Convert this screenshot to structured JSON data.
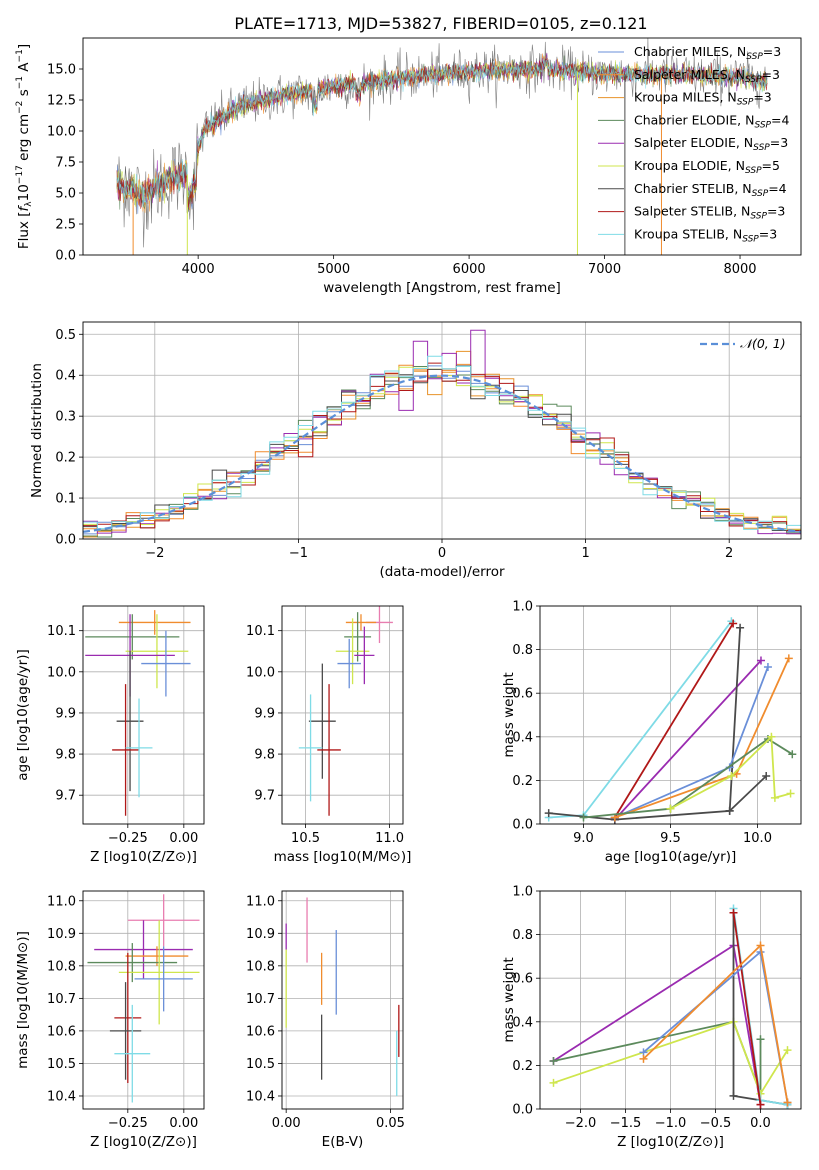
{
  "figure_title": "PLATE=1713, MJD=53827, FIBERID=0105, z=0.121",
  "colors": {
    "chabrier_miles": "#6a8fd8",
    "salpeter_miles": "#f08c2e",
    "kroupa_miles": "#e8922a",
    "chabrier_elodie": "#5c8a5c",
    "salpeter_elodie": "#9a2bb0",
    "kroupa_elodie": "#cfe64d",
    "chabrier_stelib": "#4a4a4a",
    "salpeter_stelib": "#b01818",
    "kroupa_stelib": "#7fdbe6",
    "pink": "#e87db0",
    "gaussian": "#5a8fd8",
    "data": "#808080",
    "grid": "#b0b0b0"
  },
  "chart_data": [
    {
      "id": "spectrum",
      "type": "line",
      "title": "PLATE=1713, MJD=53827, FIBERID=0105, z=0.121",
      "xlabel": "wavelength [Angstrom, rest frame]",
      "ylabel": "Flux [f_λ 10^-17 erg cm^-2 s^-1 A^-1]",
      "xlim": [
        3150,
        8450
      ],
      "ylim": [
        0,
        17.5
      ],
      "xticks": [
        4000,
        5000,
        6000,
        7000,
        8000
      ],
      "yticks": [
        "0.0",
        "2.5",
        "5.0",
        "7.5",
        "10.0",
        "12.5",
        "15.0"
      ],
      "grid": false,
      "legend": "upper right",
      "data_range": [
        3400,
        8200
      ],
      "continuum_points": [
        [
          3400,
          5.8
        ],
        [
          3600,
          4.8
        ],
        [
          3800,
          6.2
        ],
        [
          3950,
          6.8
        ],
        [
          4050,
          10.2
        ],
        [
          4300,
          12.0
        ],
        [
          4600,
          12.8
        ],
        [
          5000,
          13.6
        ],
        [
          5500,
          14.3
        ],
        [
          6000,
          14.8
        ],
        [
          6500,
          15.0
        ],
        [
          7000,
          14.6
        ],
        [
          7500,
          14.6
        ],
        [
          8000,
          14.3
        ],
        [
          8200,
          14.0
        ]
      ],
      "series": [
        {
          "name": "Chabrier MILES, N_SSP=3",
          "label_main": "Chabrier MILES, N",
          "label_sub": "SSP",
          "label_tail": "=3",
          "key": "chabrier_miles"
        },
        {
          "name": "Salpeter MILES, N_SSP=3",
          "label_main": "Salpeter MILES, N",
          "label_sub": "SSP",
          "label_tail": "=3",
          "key": "salpeter_miles"
        },
        {
          "name": "Kroupa MILES, N_SSP=3",
          "label_main": "Kroupa MILES, N",
          "label_sub": "SSP",
          "label_tail": "=3",
          "key": "kroupa_miles"
        },
        {
          "name": "Chabrier ELODIE, N_SSP=4",
          "label_main": "Chabrier ELODIE, N",
          "label_sub": "SSP",
          "label_tail": "=4",
          "key": "chabrier_elodie"
        },
        {
          "name": "Salpeter ELODIE, N_SSP=3",
          "label_main": "Salpeter ELODIE, N",
          "label_sub": "SSP",
          "label_tail": "=3",
          "key": "salpeter_elodie"
        },
        {
          "name": "Kroupa ELODIE, N_SSP=5",
          "label_main": "Kroupa ELODIE, N",
          "label_sub": "SSP",
          "label_tail": "=5",
          "key": "kroupa_elodie"
        },
        {
          "name": "Chabrier STELIB, N_SSP=4",
          "label_main": "Chabrier STELIB, N",
          "label_sub": "SSP",
          "label_tail": "=4",
          "key": "chabrier_stelib"
        },
        {
          "name": "Salpeter STELIB, N_SSP=3",
          "label_main": "Salpeter STELIB, N",
          "label_sub": "SSP",
          "label_tail": "=3",
          "key": "salpeter_stelib"
        },
        {
          "name": "Kroupa STELIB, N_SSP=3",
          "label_main": "Kroupa STELIB, N",
          "label_sub": "SSP",
          "label_tail": "=3",
          "key": "kroupa_stelib"
        }
      ],
      "edge_drops": [
        {
          "key": "salpeter_miles",
          "x": 3520,
          "y_from": 0,
          "y_to": 5.0
        },
        {
          "key": "kroupa_elodie",
          "x": 3920,
          "y_from": 0,
          "y_to": 6.5
        },
        {
          "key": "kroupa_elodie",
          "x": 6800,
          "y_from": 0,
          "y_to": 14.8
        },
        {
          "key": "salpeter_miles",
          "x": 7420,
          "y_from": 0,
          "y_to": 14.5
        },
        {
          "key": "chabrier_stelib",
          "x": 7150,
          "y_from": 0,
          "y_to": 14.6
        }
      ]
    },
    {
      "id": "residuals",
      "type": "histogram",
      "xlabel": "(data-model)/error",
      "ylabel": "Normed distribution",
      "xlim": [
        -2.5,
        2.5
      ],
      "ylim": [
        0,
        0.53
      ],
      "xticks": [
        "−2",
        "−1",
        "0",
        "1",
        "2"
      ],
      "yticks": [
        "0.0",
        "0.1",
        "0.2",
        "0.3",
        "0.4",
        "0.5"
      ],
      "grid": true,
      "legend": "upper right",
      "legend_label": "𝒩(0, 1)",
      "bin_width": 0.1,
      "x_start": -2.5,
      "peak_bins": {
        "chabrier_elodie_x": 0.25,
        "salpeter_elodie_peak": 0.51
      },
      "series_keys": [
        "chabrier_miles",
        "salpeter_miles",
        "kroupa_miles",
        "chabrier_elodie",
        "salpeter_elodie",
        "kroupa_elodie",
        "chabrier_stelib",
        "salpeter_stelib",
        "kroupa_stelib"
      ]
    },
    {
      "id": "age_vs_Z",
      "type": "errorbar",
      "xlabel": "Z [log10(Z/Z⊙)]",
      "ylabel": "age [log10(age/yr)]",
      "xlim": [
        -0.45,
        0.09
      ],
      "ylim": [
        9.63,
        10.16
      ],
      "xticks": [
        -0.25,
        0.0
      ],
      "xtick_labels": [
        "−0.25",
        "0.00"
      ],
      "yticks": [
        9.7,
        9.8,
        9.9,
        10.0,
        10.1
      ],
      "ytick_labels": [
        "9.7",
        "9.8",
        "9.9",
        "10.0",
        "10.1"
      ],
      "grid": true,
      "points": [
        {
          "key": "salpeter_miles",
          "x": -0.13,
          "y": 10.12,
          "xerr": 0.16,
          "yerr": 0.03
        },
        {
          "key": "chabrier_elodie",
          "x": -0.23,
          "y": 10.085,
          "xerr": 0.21,
          "yerr": 0.055
        },
        {
          "key": "kroupa_elodie",
          "x": -0.12,
          "y": 10.05,
          "xerr": 0.14,
          "yerr": 0.09
        },
        {
          "key": "salpeter_elodie",
          "x": -0.24,
          "y": 10.04,
          "xerr": 0.2,
          "yerr": 0.1
        },
        {
          "key": "chabrier_miles",
          "x": -0.08,
          "y": 10.02,
          "xerr": 0.11,
          "yerr": 0.08
        },
        {
          "key": "chabrier_stelib",
          "x": -0.24,
          "y": 9.88,
          "xerr": 0.06,
          "yerr": 0.17
        },
        {
          "key": "salpeter_stelib",
          "x": -0.26,
          "y": 9.81,
          "xerr": 0.06,
          "yerr": 0.16
        },
        {
          "key": "kroupa_stelib",
          "x": -0.2,
          "y": 9.815,
          "xerr": 0.06,
          "yerr": 0.12
        }
      ]
    },
    {
      "id": "age_vs_mass",
      "type": "errorbar",
      "xlabel": "mass [log10(M/M⊙)]",
      "ylabel": "",
      "xlim": [
        10.36,
        11.08
      ],
      "ylim": [
        9.63,
        10.16
      ],
      "xticks": [
        10.5,
        11.0
      ],
      "xtick_labels": [
        "10.5",
        "11.0"
      ],
      "yticks": [
        9.7,
        9.8,
        9.9,
        10.0,
        10.1
      ],
      "ytick_labels": [
        "9.7",
        "9.8",
        "9.9",
        "10.0",
        "10.1"
      ],
      "grid": true,
      "points": [
        {
          "key": "pink",
          "x": 10.94,
          "y": 10.12,
          "xerr": 0.08,
          "yerr": 0.05
        },
        {
          "key": "salpeter_miles",
          "x": 10.83,
          "y": 10.12,
          "xerr": 0.09,
          "yerr": 0.02
        },
        {
          "key": "chabrier_elodie",
          "x": 10.81,
          "y": 10.085,
          "xerr": 0.08,
          "yerr": 0.06
        },
        {
          "key": "kroupa_elodie",
          "x": 10.78,
          "y": 10.05,
          "xerr": 0.1,
          "yerr": 0.08
        },
        {
          "key": "salpeter_elodie",
          "x": 10.85,
          "y": 10.04,
          "xerr": 0.06,
          "yerr": 0.07
        },
        {
          "key": "chabrier_miles",
          "x": 10.76,
          "y": 10.02,
          "xerr": 0.07,
          "yerr": 0.06
        },
        {
          "key": "chabrier_stelib",
          "x": 10.6,
          "y": 9.88,
          "xerr": 0.08,
          "yerr": 0.14
        },
        {
          "key": "salpeter_stelib",
          "x": 10.64,
          "y": 9.81,
          "xerr": 0.07,
          "yerr": 0.16
        },
        {
          "key": "kroupa_stelib",
          "x": 10.53,
          "y": 9.815,
          "xerr": 0.07,
          "yerr": 0.13
        }
      ]
    },
    {
      "id": "weight_vs_age",
      "type": "line",
      "xlabel": "age [log10(age/yr)]",
      "ylabel": "mass weight",
      "xlim": [
        8.75,
        10.25
      ],
      "ylim": [
        0,
        1.0
      ],
      "xticks": [
        9.0,
        9.5,
        10.0
      ],
      "xtick_labels": [
        "9.0",
        "9.5",
        "10.0"
      ],
      "yticks": [
        0.0,
        0.2,
        0.4,
        0.6,
        0.8,
        1.0
      ],
      "ytick_labels": [
        "0.0",
        "0.2",
        "0.4",
        "0.6",
        "0.8",
        "1.0"
      ],
      "grid": true,
      "series": [
        {
          "key": "kroupa_stelib",
          "x": [
            8.8,
            9.0,
            9.85
          ],
          "y": [
            0.03,
            0.04,
            0.93
          ]
        },
        {
          "key": "salpeter_stelib",
          "x": [
            9.18,
            9.86
          ],
          "y": [
            0.03,
            0.92
          ]
        },
        {
          "key": "salpeter_elodie",
          "x": [
            9.18,
            10.02
          ],
          "y": [
            0.02,
            0.75
          ]
        },
        {
          "key": "chabrier_stelib",
          "x": [
            8.8,
            9.18,
            9.84,
            9.9
          ],
          "y": [
            0.05,
            0.02,
            0.06,
            0.9
          ]
        },
        {
          "key": "chabrier_miles",
          "x": [
            9.18,
            9.84,
            10.06
          ],
          "y": [
            0.03,
            0.26,
            0.72
          ]
        },
        {
          "key": "salpeter_miles",
          "x": [
            9.18,
            9.88,
            10.18
          ],
          "y": [
            0.03,
            0.23,
            0.76
          ]
        },
        {
          "key": "chabrier_elodie",
          "x": [
            9.0,
            9.5,
            10.06,
            10.2
          ],
          "y": [
            0.03,
            0.07,
            0.39,
            0.32
          ]
        },
        {
          "key": "kroupa_elodie",
          "x": [
            9.5,
            9.85,
            10.08,
            10.1,
            10.19
          ],
          "y": [
            0.07,
            0.22,
            0.4,
            0.12,
            0.14
          ]
        },
        {
          "key": "chabrier_stelib",
          "x": [
            9.84,
            10.05
          ],
          "y": [
            0.06,
            0.22
          ]
        }
      ]
    },
    {
      "id": "mass_vs_Z",
      "type": "errorbar",
      "xlabel": "Z [log10(Z/Z⊙)]",
      "ylabel": "mass [log10(M/M⊙)]",
      "xlim": [
        -0.45,
        0.09
      ],
      "ylim": [
        10.36,
        11.03
      ],
      "xticks": [
        -0.25,
        0.0
      ],
      "xtick_labels": [
        "−0.25",
        "0.00"
      ],
      "yticks": [
        10.4,
        10.5,
        10.6,
        10.7,
        10.8,
        10.9,
        11.0
      ],
      "ytick_labels": [
        "10.4",
        "10.5",
        "10.6",
        "10.7",
        "10.8",
        "10.9",
        "11.0"
      ],
      "grid": true,
      "points": [
        {
          "key": "pink",
          "x": -0.09,
          "y": 10.94,
          "xerr": 0.16,
          "yerr": 0.08
        },
        {
          "key": "salpeter_elodie",
          "x": -0.18,
          "y": 10.85,
          "xerr": 0.22,
          "yerr": 0.09
        },
        {
          "key": "salpeter_miles",
          "x": -0.12,
          "y": 10.83,
          "xerr": 0.14,
          "yerr": 0.03
        },
        {
          "key": "chabrier_elodie",
          "x": -0.23,
          "y": 10.81,
          "xerr": 0.2,
          "yerr": 0.06
        },
        {
          "key": "kroupa_elodie",
          "x": -0.11,
          "y": 10.78,
          "xerr": 0.18,
          "yerr": 0.16
        },
        {
          "key": "chabrier_miles",
          "x": -0.09,
          "y": 10.76,
          "xerr": 0.13,
          "yerr": 0.1
        },
        {
          "key": "salpeter_stelib",
          "x": -0.25,
          "y": 10.64,
          "xerr": 0.06,
          "yerr": 0.2
        },
        {
          "key": "chabrier_stelib",
          "x": -0.26,
          "y": 10.6,
          "xerr": 0.07,
          "yerr": 0.15
        },
        {
          "key": "kroupa_stelib",
          "x": -0.23,
          "y": 10.53,
          "xerr": 0.08,
          "yerr": 0.15
        }
      ]
    },
    {
      "id": "mass_vs_ebv",
      "type": "errorbar",
      "xlabel": "E(B-V)",
      "ylabel": "",
      "xlim": [
        -0.002,
        0.056
      ],
      "ylim": [
        10.36,
        11.03
      ],
      "xticks": [
        0.0,
        0.05
      ],
      "xtick_labels": [
        "0.00",
        "0.05"
      ],
      "yticks": [
        10.4,
        10.5,
        10.6,
        10.7,
        10.8,
        10.9,
        11.0
      ],
      "ytick_labels": [
        "10.4",
        "10.5",
        "10.6",
        "10.7",
        "10.8",
        "10.9",
        "11.0"
      ],
      "grid": true,
      "points": [
        {
          "key": "pink",
          "x": 0.01,
          "y": 10.91,
          "xerr": 0,
          "yerr": 0.1
        },
        {
          "key": "salpeter_elodie",
          "x": 0.0,
          "y": 10.89,
          "xerr": 0,
          "yerr": 0.04
        },
        {
          "key": "kroupa_elodie",
          "x": 0.0,
          "y": 10.73,
          "xerr": 0,
          "yerr": 0.12
        },
        {
          "key": "salpeter_miles",
          "x": 0.017,
          "y": 10.76,
          "xerr": 0,
          "yerr": 0.08
        },
        {
          "key": "chabrier_miles",
          "x": 0.024,
          "y": 10.78,
          "xerr": 0,
          "yerr": 0.13
        },
        {
          "key": "chabrier_stelib",
          "x": 0.017,
          "y": 10.55,
          "xerr": 0,
          "yerr": 0.1
        },
        {
          "key": "salpeter_stelib",
          "x": 0.054,
          "y": 10.6,
          "xerr": 0,
          "yerr": 0.08
        },
        {
          "key": "kroupa_stelib",
          "x": 0.053,
          "y": 10.5,
          "xerr": 0,
          "yerr": 0.1
        }
      ]
    },
    {
      "id": "weight_vs_Z",
      "type": "line",
      "xlabel": "Z [log10(Z/Z⊙)]",
      "ylabel": "mass weight",
      "xlim": [
        -2.45,
        0.45
      ],
      "ylim": [
        0,
        1.0
      ],
      "xticks": [
        -2.0,
        -1.5,
        -1.0,
        -0.5,
        0.0
      ],
      "xtick_labels": [
        "−2.0",
        "−1.5",
        "−1.0",
        "−0.5",
        "0.0"
      ],
      "yticks": [
        0.0,
        0.2,
        0.4,
        0.6,
        0.8,
        1.0
      ],
      "ytick_labels": [
        "0.0",
        "0.2",
        "0.4",
        "0.6",
        "0.8",
        "1.0"
      ],
      "grid": true,
      "series": [
        {
          "key": "salpeter_elodie",
          "x": [
            -2.3,
            -0.3,
            0.0
          ],
          "y": [
            0.22,
            0.75,
            0.02
          ]
        },
        {
          "key": "chabrier_elodie",
          "x": [
            -2.3,
            -0.3,
            0.0,
            0.0
          ],
          "y": [
            0.22,
            0.4,
            0.07,
            0.32
          ]
        },
        {
          "key": "kroupa_elodie",
          "x": [
            -2.3,
            -0.3,
            0.0,
            0.3
          ],
          "y": [
            0.12,
            0.4,
            0.07,
            0.27
          ]
        },
        {
          "key": "chabrier_stelib",
          "x": [
            -0.3,
            -0.3,
            0.3
          ],
          "y": [
            0.9,
            0.06,
            0.02
          ]
        },
        {
          "key": "kroupa_stelib",
          "x": [
            -0.3,
            0.0,
            0.3
          ],
          "y": [
            0.92,
            0.04,
            0.02
          ]
        },
        {
          "key": "salpeter_stelib",
          "x": [
            -0.3,
            0.0
          ],
          "y": [
            0.9,
            0.02
          ]
        },
        {
          "key": "chabrier_miles",
          "x": [
            -1.3,
            0.0,
            0.3
          ],
          "y": [
            0.26,
            0.72,
            0.03
          ]
        },
        {
          "key": "salpeter_miles",
          "x": [
            -1.3,
            0.0,
            0.3
          ],
          "y": [
            0.23,
            0.75,
            0.03
          ]
        }
      ]
    }
  ]
}
